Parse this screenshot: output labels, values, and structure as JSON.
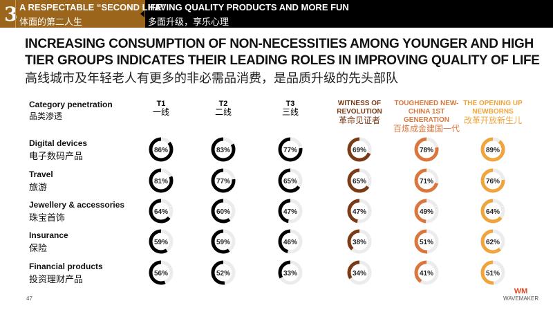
{
  "header": {
    "section_number": "3",
    "section_title": "A RESPECTABLE “SECOND LIFE”",
    "section_title_zh": "体面的第二人生",
    "topic": "HAVING QUALITY PRODUCTS AND MORE FUN",
    "topic_zh": "多面升级，享乐心理"
  },
  "title_line1": "INCREASING CONSUMPTION OF NON-NECESSITIES AMONG YOUNGER AND HIGH",
  "title_line2": "TIER GROUPS INDICATES THEIR LEADING ROLES IN IMPROVING QUALITY OF LIFE",
  "subtitle": "高线城市及年轻老人有更多的非必需品消费，是品质升级的先头部队",
  "page_number": "47",
  "logo": {
    "mark": "WM",
    "name": "WAVEMAKER"
  },
  "colors": {
    "T": "#000000",
    "witness": "#7a3a16",
    "toughened": "#d9773e",
    "opening": "#f0a43c",
    "track": "#ececec"
  },
  "chart_data": {
    "type": "donut-grid",
    "row_header": "Category penetration",
    "row_header_zh": "品类渗透",
    "columns": [
      {
        "label": "T1",
        "label_zh": "一线",
        "color": "#000000"
      },
      {
        "label": "T2",
        "label_zh": "二线",
        "color": "#000000"
      },
      {
        "label": "T3",
        "label_zh": "三线",
        "color": "#000000"
      },
      {
        "label": "WITNESS OF REVOLUTION",
        "label_zh": "革命见证者",
        "color": "#7a3a16"
      },
      {
        "label": "TOUGHENED NEW-CHINA 1ST GENERATION",
        "label_zh": "百炼成金建国一代",
        "color": "#d9773e"
      },
      {
        "label": "THE OPENING UP NEWBORNS",
        "label_zh": "改革开放新生儿",
        "color": "#f0a43c"
      }
    ],
    "rows": [
      {
        "label": "Digital devices",
        "label_zh": "电子数码产品",
        "values": [
          86,
          83,
          77,
          69,
          78,
          89
        ]
      },
      {
        "label": "Travel",
        "label_zh": "旅游",
        "values": [
          81,
          77,
          65,
          65,
          71,
          76
        ]
      },
      {
        "label": "Jewellery & accessories",
        "label_zh": "珠宝首饰",
        "values": [
          64,
          60,
          47,
          47,
          49,
          64
        ]
      },
      {
        "label": "Insurance",
        "label_zh": "保险",
        "values": [
          59,
          59,
          46,
          38,
          51,
          62
        ]
      },
      {
        "label": "Financial products",
        "label_zh": "投资理财产品",
        "values": [
          56,
          52,
          33,
          34,
          41,
          51
        ]
      }
    ],
    "unit": "%"
  }
}
